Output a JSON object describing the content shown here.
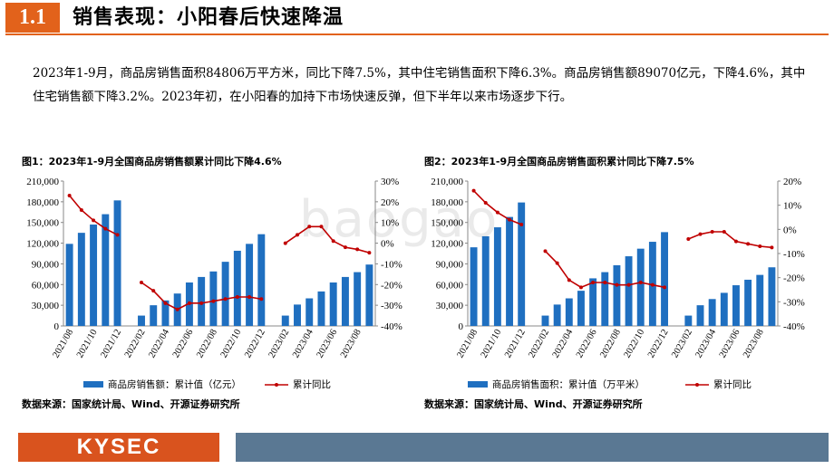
{
  "header": {
    "section_number": "1.1",
    "title": "销售表现：小阳春后快速降温"
  },
  "summary": "2023年1-9月，商品房销售面积84806万平方米，同比下降7.5%，其中住宅销售面积下降6.3%。商品房销售额89070亿元，下降4.6%，其中住宅销售额下降3.2%。2023年初，在小阳春的加持下市场快速反弹，但下半年以来市场逐步下行。",
  "watermark": "baogao",
  "footer": {
    "logo": "KYSEC"
  },
  "colors": {
    "bar": "#1f6fc0",
    "line": "#c00000",
    "accent": "#e2621b",
    "footer_bar": "#5a7893"
  },
  "chart_data": [
    {
      "type": "bar+line",
      "title": "图1：2023年1-9月全国商品房销售额累计同比下降4.6%",
      "source": "数据来源：国家统计局、Wind、开源证券研究所",
      "x_tick_labels": [
        "2021/08",
        "2021/10",
        "2021/12",
        "2022/02",
        "2022/04",
        "2022/06",
        "2022/08",
        "2022/10",
        "2022/12",
        "2023/02",
        "2023/04",
        "2023/06",
        "2023/08"
      ],
      "months": [
        "2021/08",
        "2021/09",
        "2021/10",
        "2021/11",
        "2021/12",
        "2022/01",
        "2022/02",
        "2022/03",
        "2022/04",
        "2022/05",
        "2022/06",
        "2022/07",
        "2022/08",
        "2022/09",
        "2022/10",
        "2022/11",
        "2022/12",
        "2023/01",
        "2023/02",
        "2023/03",
        "2023/04",
        "2023/05",
        "2023/06",
        "2023/07",
        "2023/08",
        "2023/09"
      ],
      "bars": {
        "name": "商品房销售额：累计值（亿元）",
        "values": [
          119000,
          135000,
          147000,
          162000,
          182000,
          null,
          15000,
          30000,
          37000,
          47000,
          63000,
          71000,
          79000,
          93000,
          109000,
          119000,
          133000,
          null,
          15000,
          31000,
          40000,
          50000,
          63000,
          71000,
          78000,
          89000
        ]
      },
      "line": {
        "name": "累计同比",
        "values": [
          23,
          16,
          11,
          7,
          4,
          null,
          -19,
          -23,
          -29,
          -32,
          -29,
          -29,
          -28,
          -27,
          -26,
          -26,
          -27,
          null,
          0,
          4,
          8,
          8,
          1,
          -2,
          -3,
          -4.6
        ]
      },
      "y_left": {
        "ticks": [
          0,
          30000,
          60000,
          90000,
          120000,
          150000,
          180000,
          210000
        ],
        "tick_labels": [
          "0",
          "30,000",
          "60,000",
          "90,000",
          "120,000",
          "150,000",
          "180,000",
          "210,000"
        ],
        "ylim": [
          0,
          210000
        ]
      },
      "y_right": {
        "ticks": [
          -40,
          -30,
          -20,
          -10,
          0,
          10,
          20,
          30
        ],
        "tick_labels": [
          "-40%",
          "-30%",
          "-20%",
          "-10%",
          "0%",
          "10%",
          "20%",
          "30%"
        ],
        "ylim": [
          -40,
          30
        ]
      }
    },
    {
      "type": "bar+line",
      "title": "图2：2023年1-9月全国商品房销售面积累计同比下降7.5%",
      "source": "数据来源：国家统计局、Wind、开源证券研究所",
      "x_tick_labels": [
        "2021/08",
        "2021/10",
        "2021/12",
        "2022/02",
        "2022/04",
        "2022/06",
        "2022/08",
        "2022/10",
        "2022/12",
        "2023/02",
        "2023/04",
        "2023/06",
        "2023/08"
      ],
      "months": [
        "2021/08",
        "2021/09",
        "2021/10",
        "2021/11",
        "2021/12",
        "2022/01",
        "2022/02",
        "2022/03",
        "2022/04",
        "2022/05",
        "2022/06",
        "2022/07",
        "2022/08",
        "2022/09",
        "2022/10",
        "2022/11",
        "2022/12",
        "2023/01",
        "2023/02",
        "2023/03",
        "2023/04",
        "2023/05",
        "2023/06",
        "2023/07",
        "2023/08",
        "2023/09"
      ],
      "bars": {
        "name": "商品房销售面积：累计值（万平米）",
        "values": [
          114000,
          130000,
          143000,
          158000,
          179000,
          null,
          15000,
          31000,
          40000,
          51000,
          69000,
          78000,
          88000,
          101000,
          112000,
          122000,
          136000,
          null,
          15000,
          30000,
          39000,
          48000,
          59000,
          67000,
          74000,
          85000
        ]
      },
      "line": {
        "name": "累计同比",
        "values": [
          16,
          11,
          7,
          4,
          2,
          null,
          -9,
          -14,
          -21,
          -24,
          -22,
          -22,
          -23,
          -23,
          -22,
          -23,
          -24,
          null,
          -4,
          -2,
          -1,
          -1,
          -5,
          -6,
          -7,
          -7.5
        ]
      },
      "y_left": {
        "ticks": [
          0,
          30000,
          60000,
          90000,
          120000,
          150000,
          180000,
          210000
        ],
        "tick_labels": [
          "0",
          "30,000",
          "60,000",
          "90,000",
          "120,000",
          "150,000",
          "180,000",
          "210,000"
        ],
        "ylim": [
          0,
          210000
        ]
      },
      "y_right": {
        "ticks": [
          -40,
          -30,
          -20,
          -10,
          0,
          10,
          20
        ],
        "tick_labels": [
          "-40%",
          "-30%",
          "-20%",
          "-10%",
          "0%",
          "10%",
          "20%"
        ],
        "ylim": [
          -40,
          20
        ]
      }
    }
  ]
}
